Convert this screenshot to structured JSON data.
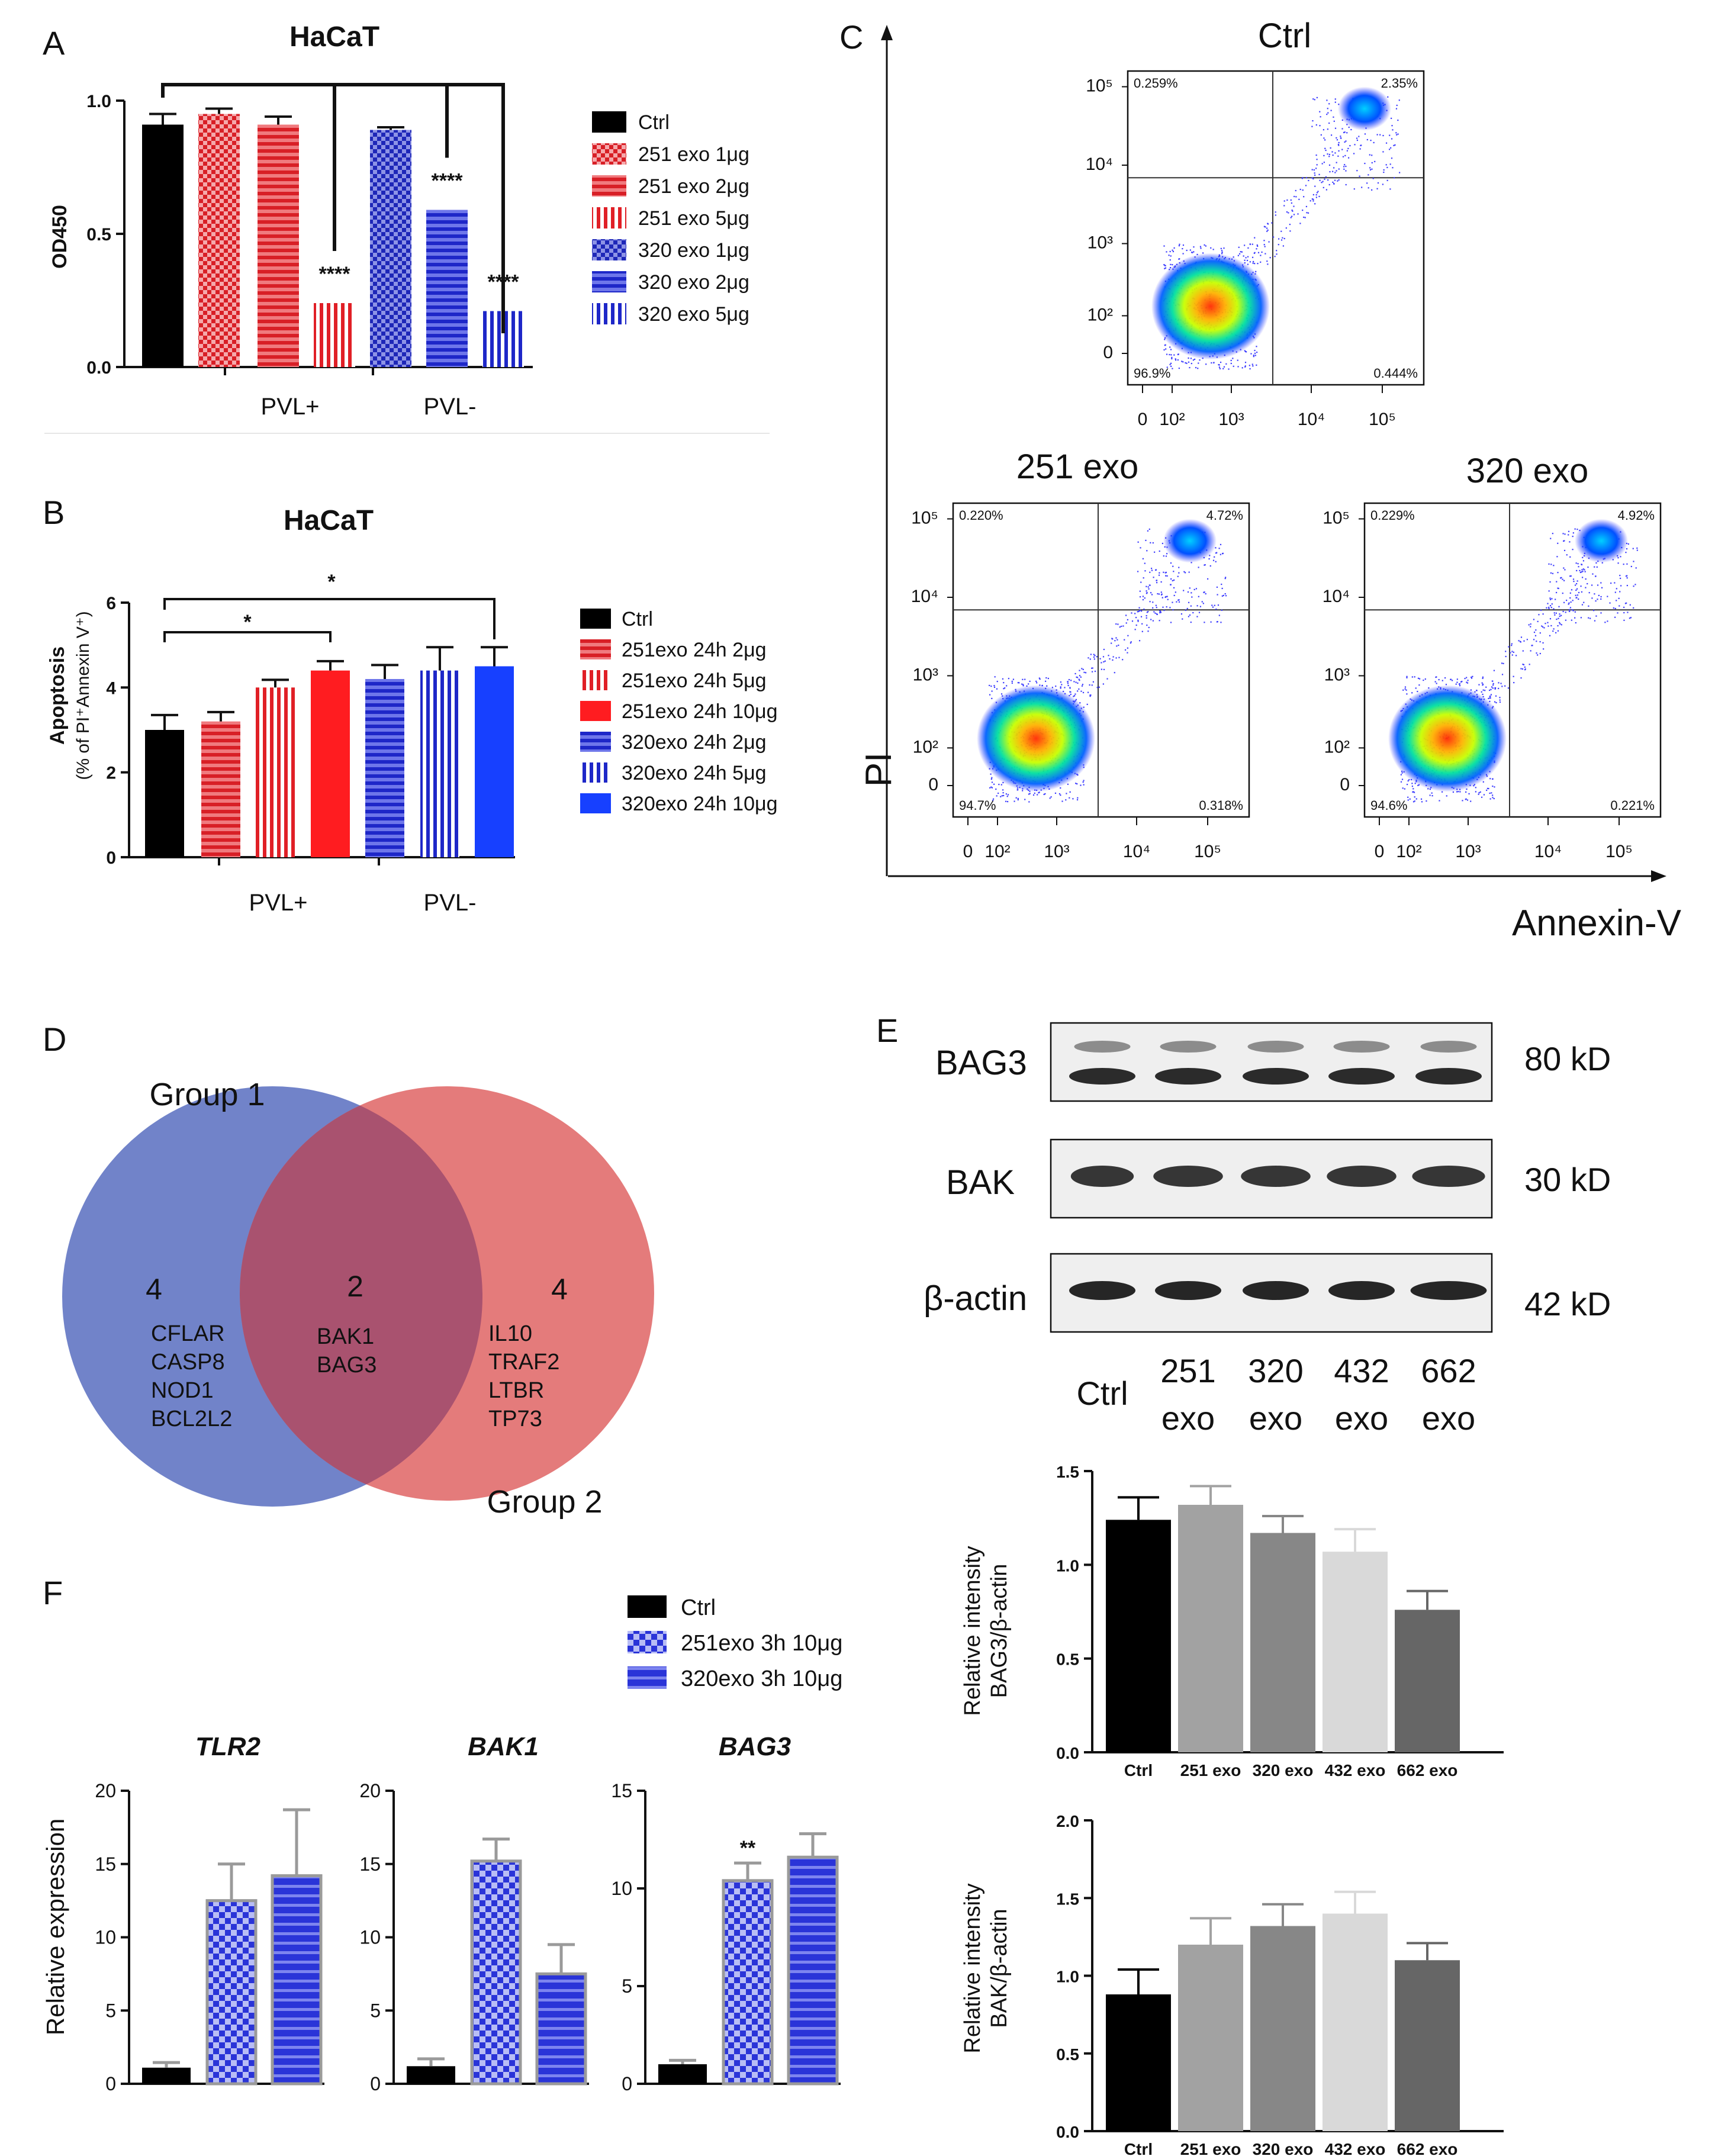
{
  "figure": {
    "panel_labels": [
      "A",
      "B",
      "C",
      "D",
      "E",
      "F"
    ]
  },
  "colors": {
    "black": "#000000",
    "red": "#e8262c",
    "red_dark": "#c0151b",
    "blue": "#2b34d6",
    "blue_dark": "#141c9e",
    "blue_bright": "#1740ff",
    "grey1": "#a2a2a2",
    "grey2": "#878787",
    "grey3": "#d9d9d9",
    "grey4": "#666666",
    "venn_blue": "#7183c9",
    "venn_red": "#e47b7b",
    "venn_mid": "#a9526f"
  },
  "chart_data": [
    {
      "id": "A",
      "type": "bar",
      "title": "HaCaT",
      "ylabel": "OD450",
      "ylim": [
        0,
        1.0
      ],
      "yticks": [
        "0.0",
        "0.5",
        "1.0"
      ],
      "group_labels": [
        "PVL+",
        "PVL-"
      ],
      "series": [
        {
          "name": "Ctrl",
          "value": 0.91,
          "err": 0.04,
          "pattern": "solid-black"
        },
        {
          "name": "251 exo 1μg",
          "value": 0.95,
          "err": 0.02,
          "pattern": "red-check"
        },
        {
          "name": "251 exo 2μg",
          "value": 0.91,
          "err": 0.03,
          "pattern": "red-hstripe"
        },
        {
          "name": "251 exo 5μg",
          "value": 0.24,
          "err": 0.0,
          "pattern": "red-vstripe",
          "sig": "****"
        },
        {
          "name": "320 exo 1μg",
          "value": 0.89,
          "err": 0.01,
          "pattern": "blue-check"
        },
        {
          "name": "320 exo 2μg",
          "value": 0.59,
          "err": 0.0,
          "pattern": "blue-hstripe",
          "sig": "****"
        },
        {
          "name": "320 exo 5μg",
          "value": 0.21,
          "err": 0.0,
          "pattern": "blue-vstripe",
          "sig": "****"
        }
      ]
    },
    {
      "id": "B",
      "type": "bar",
      "title": "HaCaT",
      "ylabel_line1": "Apoptosis",
      "ylabel_line2": "(% of PI⁺Annexin V⁺)",
      "ylim": [
        0,
        6
      ],
      "yticks": [
        "0",
        "2",
        "4",
        "6"
      ],
      "group_labels": [
        "PVL+",
        "PVL-"
      ],
      "sig_labels": [
        "*",
        "*"
      ],
      "series": [
        {
          "name": "Ctrl",
          "value": 3.0,
          "err": 0.35,
          "pattern": "solid-black"
        },
        {
          "name": "251exo 24h 2μg",
          "value": 3.2,
          "err": 0.22,
          "pattern": "red-hstripe"
        },
        {
          "name": "251exo 24h 5μg",
          "value": 4.0,
          "err": 0.18,
          "pattern": "red-vstripe"
        },
        {
          "name": "251exo 24h 10μg",
          "value": 4.4,
          "err": 0.22,
          "pattern": "solid-red"
        },
        {
          "name": "320exo 24h 2μg",
          "value": 4.2,
          "err": 0.33,
          "pattern": "blue-hstripe"
        },
        {
          "name": "320exo 24h 5μg",
          "value": 4.4,
          "err": 0.55,
          "pattern": "blue-vstripe"
        },
        {
          "name": "320exo 24h 10μg",
          "value": 4.5,
          "err": 0.45,
          "pattern": "solid-blue"
        }
      ]
    },
    {
      "id": "C",
      "type": "scatter",
      "xlabel": "Annexin-V",
      "ylabel": "PI",
      "plots": [
        {
          "title": "Ctrl",
          "quadrants": [
            "0.259%",
            "2.35%",
            "96.9%",
            "0.444%"
          ]
        },
        {
          "title": "251 exo",
          "quadrants": [
            "0.220%",
            "4.72%",
            "94.7%",
            "0.318%"
          ]
        },
        {
          "title": "320 exo",
          "quadrants": [
            "0.229%",
            "4.92%",
            "94.6%",
            "0.221%"
          ]
        }
      ],
      "x_ticks": [
        "0",
        "10²",
        "10³",
        "10⁴",
        "10⁵"
      ],
      "y_ticks": [
        "10⁵",
        "10⁴",
        "10³",
        "10²",
        "0"
      ]
    },
    {
      "id": "E1",
      "type": "bar",
      "ylabel_line1": "Relative intensity",
      "ylabel_line2": "BAG3/β-actin",
      "ylim": [
        0,
        1.5
      ],
      "yticks": [
        "0.0",
        "0.5",
        "1.0",
        "1.5"
      ],
      "categories": [
        "Ctrl",
        "251 exo",
        "320 exo",
        "432 exo",
        "662 exo"
      ],
      "values": [
        1.24,
        1.32,
        1.17,
        1.07,
        0.76
      ],
      "errors": [
        0.12,
        0.1,
        0.09,
        0.12,
        0.1
      ]
    },
    {
      "id": "E2",
      "type": "bar",
      "ylabel_line1": "Relative intensity",
      "ylabel_line2": "BAK/β-actin",
      "ylim": [
        0,
        2.0
      ],
      "yticks": [
        "0.0",
        "0.5",
        "1.0",
        "1.5",
        "2.0"
      ],
      "categories": [
        "Ctrl",
        "251 exo",
        "320 exo",
        "432 exo",
        "662 exo"
      ],
      "values": [
        0.88,
        1.2,
        1.32,
        1.4,
        1.1
      ],
      "errors": [
        0.16,
        0.17,
        0.14,
        0.14,
        0.11
      ]
    },
    {
      "id": "F",
      "type": "bar",
      "ylabel": "Relative expression",
      "legend": [
        "Ctrl",
        "251exo 3h 10μg",
        "320exo 3h 10μg"
      ],
      "subplots": [
        {
          "gene": "TLR2",
          "ylim": [
            0,
            20
          ],
          "yticks": [
            "0",
            "5",
            "10",
            "15",
            "20"
          ],
          "values": [
            1.1,
            12.5,
            14.2
          ],
          "errors": [
            0.35,
            2.5,
            4.5
          ],
          "sig": ""
        },
        {
          "gene": "BAK1",
          "ylim": [
            0,
            20
          ],
          "yticks": [
            "0",
            "5",
            "10",
            "15",
            "20"
          ],
          "values": [
            1.2,
            15.2,
            7.5
          ],
          "errors": [
            0.5,
            1.5,
            2.0
          ],
          "sig": ""
        },
        {
          "gene": "BAG3",
          "ylim": [
            0,
            15
          ],
          "yticks": [
            "0",
            "5",
            "10",
            "15"
          ],
          "values": [
            1.0,
            10.4,
            11.6
          ],
          "errors": [
            0.2,
            0.9,
            1.2
          ],
          "sig": "**"
        }
      ]
    }
  ],
  "venn": {
    "group1_label": "Group 1",
    "group2_label": "Group 2",
    "left_count": "4",
    "mid_count": "2",
    "right_count": "4",
    "left_genes": [
      "CFLAR",
      "CASP8",
      "NOD1",
      "BCL2L2"
    ],
    "mid_genes": [
      "BAK1",
      "BAG3"
    ],
    "right_genes": [
      "IL10",
      "TRAF2",
      "LTBR",
      "TP73"
    ]
  },
  "western": {
    "rows": [
      {
        "label": "BAG3",
        "kd": "80 kD"
      },
      {
        "label": "BAK",
        "kd": "30 kD"
      },
      {
        "label": "β-actin",
        "kd": "42 kD"
      }
    ],
    "lanes": [
      {
        "l1": "Ctrl",
        "l2": ""
      },
      {
        "l1": "251",
        "l2": "exo"
      },
      {
        "l1": "320",
        "l2": "exo"
      },
      {
        "l1": "432",
        "l2": "exo"
      },
      {
        "l1": "662",
        "l2": "exo"
      }
    ]
  }
}
